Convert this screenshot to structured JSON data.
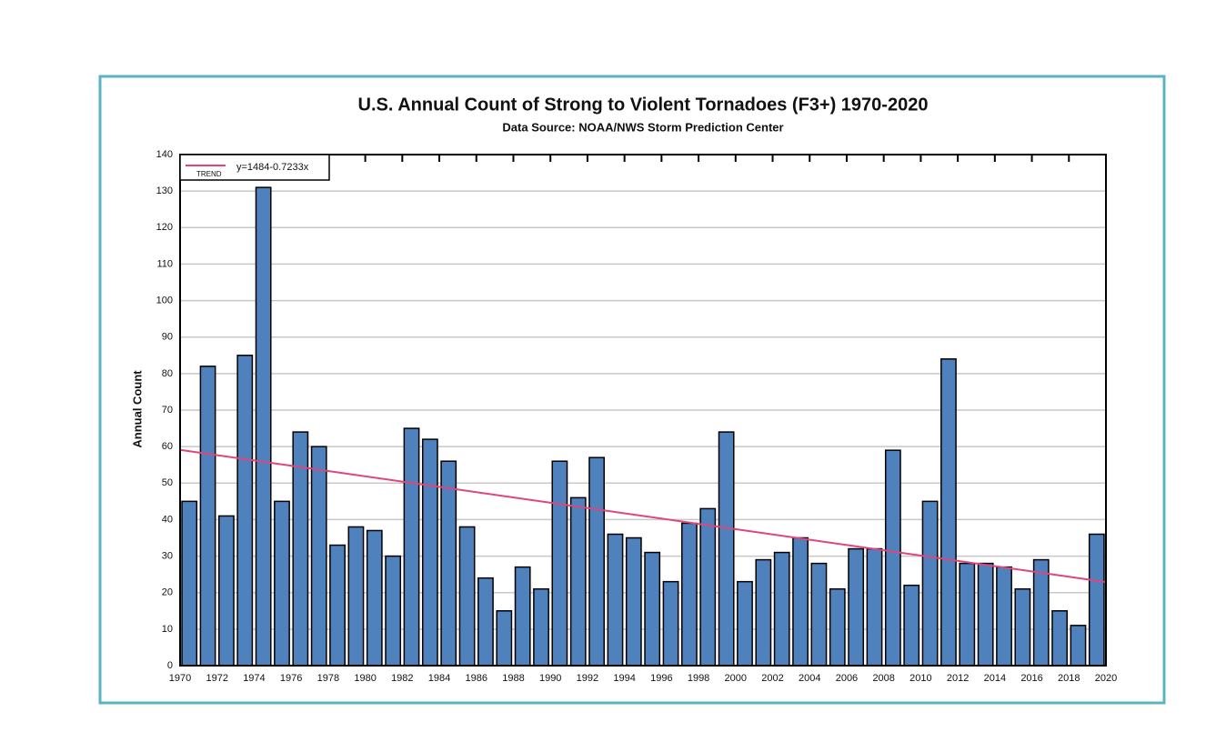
{
  "chart_data": {
    "type": "bar",
    "title": "U.S. Annual Count of Strong to Violent Tornadoes (F3+) 1970-2020",
    "subtitle": "Data Source: NOAA/NWS Storm Prediction Center",
    "y_label": "Annual Count",
    "x": [
      1970,
      1971,
      1972,
      1973,
      1974,
      1975,
      1976,
      1977,
      1978,
      1979,
      1980,
      1981,
      1982,
      1983,
      1984,
      1985,
      1986,
      1987,
      1988,
      1989,
      1990,
      1991,
      1992,
      1993,
      1994,
      1995,
      1996,
      1997,
      1998,
      1999,
      2000,
      2001,
      2002,
      2003,
      2004,
      2005,
      2006,
      2007,
      2008,
      2009,
      2010,
      2011,
      2012,
      2013,
      2014,
      2015,
      2016,
      2017,
      2018,
      2019
    ],
    "values": [
      45,
      82,
      41,
      85,
      131,
      45,
      64,
      60,
      33,
      38,
      37,
      30,
      65,
      62,
      56,
      38,
      24,
      15,
      27,
      21,
      56,
      46,
      57,
      36,
      35,
      31,
      23,
      39,
      43,
      64,
      23,
      29,
      31,
      35,
      28,
      21,
      32,
      32,
      59,
      22,
      45,
      84,
      28,
      28,
      27,
      21,
      29,
      15,
      11,
      36
    ],
    "color": "#4f81bd",
    "trend": {
      "name": "TREND",
      "equation": "y=1484-0.7233x",
      "color": "#e0457b",
      "x": [
        1970,
        2020
      ],
      "values": [
        59.1,
        22.9
      ]
    },
    "xlim": [
      1970,
      2020
    ],
    "xticks": [
      1970,
      1972,
      1974,
      1976,
      1978,
      1980,
      1982,
      1984,
      1986,
      1988,
      1990,
      1992,
      1994,
      1996,
      1998,
      2000,
      2002,
      2004,
      2006,
      2008,
      2010,
      2012,
      2014,
      2016,
      2018,
      2020
    ],
    "ylim": [
      0,
      140
    ],
    "yticks": [
      0,
      10,
      20,
      30,
      40,
      50,
      60,
      70,
      80,
      90,
      100,
      110,
      120,
      130,
      140
    ],
    "grid": true,
    "legend": "top-left"
  }
}
